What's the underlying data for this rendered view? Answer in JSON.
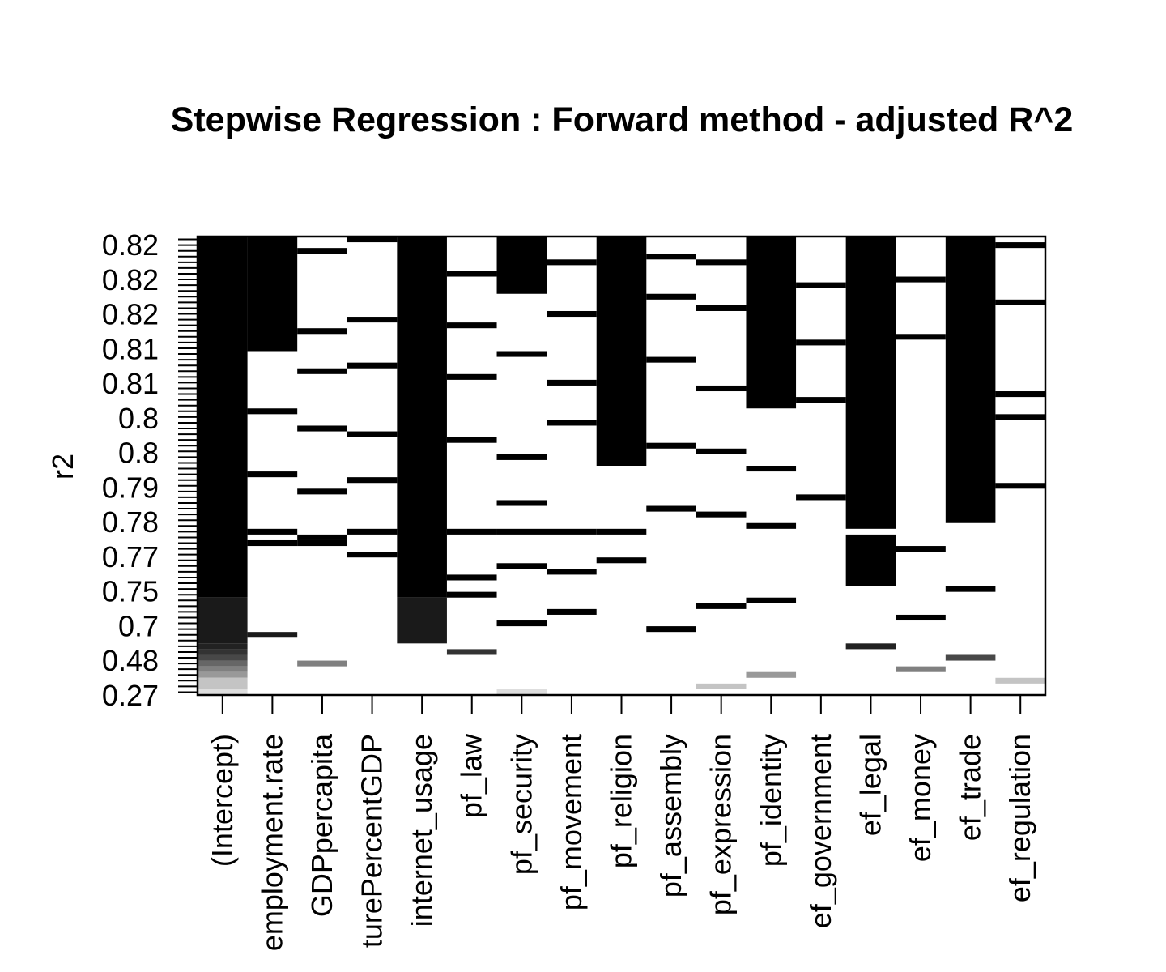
{
  "chart_data": {
    "type": "heatmap",
    "title": "Stepwise Regression : Forward method - adjusted R^2",
    "xlabel": "",
    "ylabel": "r2",
    "ytick_labels": [
      "0.82",
      "0.82",
      "0.82",
      "0.81",
      "0.81",
      "0.8",
      "0.8",
      "0.79",
      "0.78",
      "0.77",
      "0.75",
      "0.7",
      "0.48",
      "0.27"
    ],
    "columns": [
      "(Intercept)",
      "unemployment.rate",
      "GDPpercapita",
      "agriculturePercentGDP",
      "internet_usage",
      "pf_law",
      "pf_security",
      "pf_movement",
      "pf_religion",
      "pf_assembly",
      "pf_expression",
      "pf_identity",
      "ef_government",
      "ef_legal",
      "ef_money",
      "ef_trade",
      "ef_regulation"
    ],
    "column_labels_visible": [
      "(Intercept)",
      "employment.rate",
      "GDPpercapita",
      "turePercentGDP",
      "internet_usage",
      "pf_law",
      "pf_security",
      "pf_movement",
      "pf_religion",
      "pf_assembly",
      "pf_expression",
      "pf_identity",
      "ef_government",
      "ef_legal",
      "ef_money",
      "ef_trade",
      "ef_regulation"
    ],
    "n_models": 80,
    "note_fill": "black = variable included in model row; shade encodes adjusted R^2 level",
    "cells": [
      {
        "col": 0,
        "rows": [
          0,
          63
        ],
        "shade": "#000000"
      },
      {
        "col": 0,
        "rows": [
          63,
          71
        ],
        "shade": "#1a1a1a"
      },
      {
        "col": 0,
        "rows": [
          71,
          72
        ],
        "shade": "#222222"
      },
      {
        "col": 0,
        "rows": [
          72,
          73
        ],
        "shade": "#333333"
      },
      {
        "col": 0,
        "rows": [
          73,
          74
        ],
        "shade": "#484848"
      },
      {
        "col": 0,
        "rows": [
          74,
          75
        ],
        "shade": "#666666"
      },
      {
        "col": 0,
        "rows": [
          75,
          76
        ],
        "shade": "#808080"
      },
      {
        "col": 0,
        "rows": [
          76,
          77
        ],
        "shade": "#999999"
      },
      {
        "col": 0,
        "rows": [
          77,
          79
        ],
        "shade": "#c4c4c4"
      },
      {
        "col": 0,
        "rows": [
          79,
          80
        ],
        "shade": "#dedede"
      },
      {
        "col": 1,
        "rows": [
          0,
          20
        ],
        "shade": "#000000"
      },
      {
        "col": 1,
        "rows": [
          30,
          31
        ],
        "shade": "#000000"
      },
      {
        "col": 1,
        "rows": [
          41,
          42
        ],
        "shade": "#000000"
      },
      {
        "col": 1,
        "rows": [
          51,
          52
        ],
        "shade": "#000000"
      },
      {
        "col": 1,
        "rows": [
          53,
          54
        ],
        "shade": "#000000"
      },
      {
        "col": 1,
        "rows": [
          69,
          70
        ],
        "shade": "#1a1a1a"
      },
      {
        "col": 2,
        "rows": [
          2,
          3
        ],
        "shade": "#000000"
      },
      {
        "col": 2,
        "rows": [
          16,
          17
        ],
        "shade": "#000000"
      },
      {
        "col": 2,
        "rows": [
          23,
          24
        ],
        "shade": "#000000"
      },
      {
        "col": 2,
        "rows": [
          33,
          34
        ],
        "shade": "#000000"
      },
      {
        "col": 2,
        "rows": [
          44,
          45
        ],
        "shade": "#000000"
      },
      {
        "col": 2,
        "rows": [
          52,
          53
        ],
        "shade": "#000000"
      },
      {
        "col": 2,
        "rows": [
          53,
          54
        ],
        "shade": "#000000"
      },
      {
        "col": 2,
        "rows": [
          74,
          75
        ],
        "shade": "#808080"
      },
      {
        "col": 3,
        "rows": [
          0,
          1
        ],
        "shade": "#000000"
      },
      {
        "col": 3,
        "rows": [
          14,
          15
        ],
        "shade": "#000000"
      },
      {
        "col": 3,
        "rows": [
          22,
          23
        ],
        "shade": "#000000"
      },
      {
        "col": 3,
        "rows": [
          34,
          35
        ],
        "shade": "#000000"
      },
      {
        "col": 3,
        "rows": [
          42,
          43
        ],
        "shade": "#000000"
      },
      {
        "col": 3,
        "rows": [
          51,
          52
        ],
        "shade": "#000000"
      },
      {
        "col": 3,
        "rows": [
          55,
          56
        ],
        "shade": "#000000"
      },
      {
        "col": 4,
        "rows": [
          0,
          63
        ],
        "shade": "#000000"
      },
      {
        "col": 4,
        "rows": [
          63,
          71
        ],
        "shade": "#1a1a1a"
      },
      {
        "col": 5,
        "rows": [
          6,
          7
        ],
        "shade": "#000000"
      },
      {
        "col": 5,
        "rows": [
          15,
          16
        ],
        "shade": "#000000"
      },
      {
        "col": 5,
        "rows": [
          24,
          25
        ],
        "shade": "#000000"
      },
      {
        "col": 5,
        "rows": [
          35,
          36
        ],
        "shade": "#000000"
      },
      {
        "col": 5,
        "rows": [
          51,
          52
        ],
        "shade": "#000000"
      },
      {
        "col": 5,
        "rows": [
          59,
          60
        ],
        "shade": "#000000"
      },
      {
        "col": 5,
        "rows": [
          62,
          63
        ],
        "shade": "#000000"
      },
      {
        "col": 5,
        "rows": [
          72,
          73
        ],
        "shade": "#333333"
      },
      {
        "col": 6,
        "rows": [
          0,
          10
        ],
        "shade": "#000000"
      },
      {
        "col": 6,
        "rows": [
          20,
          21
        ],
        "shade": "#000000"
      },
      {
        "col": 6,
        "rows": [
          38,
          39
        ],
        "shade": "#000000"
      },
      {
        "col": 6,
        "rows": [
          46,
          47
        ],
        "shade": "#000000"
      },
      {
        "col": 6,
        "rows": [
          51,
          52
        ],
        "shade": "#000000"
      },
      {
        "col": 6,
        "rows": [
          57,
          58
        ],
        "shade": "#000000"
      },
      {
        "col": 6,
        "rows": [
          67,
          68
        ],
        "shade": "#000000"
      },
      {
        "col": 6,
        "rows": [
          79,
          80
        ],
        "shade": "#dedede"
      },
      {
        "col": 7,
        "rows": [
          4,
          5
        ],
        "shade": "#000000"
      },
      {
        "col": 7,
        "rows": [
          13,
          14
        ],
        "shade": "#000000"
      },
      {
        "col": 7,
        "rows": [
          25,
          26
        ],
        "shade": "#000000"
      },
      {
        "col": 7,
        "rows": [
          32,
          33
        ],
        "shade": "#000000"
      },
      {
        "col": 7,
        "rows": [
          51,
          52
        ],
        "shade": "#000000"
      },
      {
        "col": 7,
        "rows": [
          58,
          59
        ],
        "shade": "#000000"
      },
      {
        "col": 7,
        "rows": [
          65,
          66
        ],
        "shade": "#000000"
      },
      {
        "col": 8,
        "rows": [
          0,
          40
        ],
        "shade": "#000000"
      },
      {
        "col": 8,
        "rows": [
          51,
          52
        ],
        "shade": "#000000"
      },
      {
        "col": 8,
        "rows": [
          56,
          57
        ],
        "shade": "#000000"
      },
      {
        "col": 9,
        "rows": [
          3,
          4
        ],
        "shade": "#000000"
      },
      {
        "col": 9,
        "rows": [
          10,
          11
        ],
        "shade": "#000000"
      },
      {
        "col": 9,
        "rows": [
          21,
          22
        ],
        "shade": "#000000"
      },
      {
        "col": 9,
        "rows": [
          36,
          37
        ],
        "shade": "#000000"
      },
      {
        "col": 9,
        "rows": [
          47,
          48
        ],
        "shade": "#000000"
      },
      {
        "col": 9,
        "rows": [
          68,
          69
        ],
        "shade": "#000000"
      },
      {
        "col": 10,
        "rows": [
          4,
          5
        ],
        "shade": "#000000"
      },
      {
        "col": 10,
        "rows": [
          12,
          13
        ],
        "shade": "#000000"
      },
      {
        "col": 10,
        "rows": [
          26,
          27
        ],
        "shade": "#000000"
      },
      {
        "col": 10,
        "rows": [
          37,
          38
        ],
        "shade": "#000000"
      },
      {
        "col": 10,
        "rows": [
          48,
          49
        ],
        "shade": "#000000"
      },
      {
        "col": 10,
        "rows": [
          64,
          65
        ],
        "shade": "#000000"
      },
      {
        "col": 10,
        "rows": [
          78,
          79
        ],
        "shade": "#c4c4c4"
      },
      {
        "col": 11,
        "rows": [
          0,
          30
        ],
        "shade": "#000000"
      },
      {
        "col": 11,
        "rows": [
          40,
          41
        ],
        "shade": "#000000"
      },
      {
        "col": 11,
        "rows": [
          50,
          51
        ],
        "shade": "#000000"
      },
      {
        "col": 11,
        "rows": [
          63,
          64
        ],
        "shade": "#000000"
      },
      {
        "col": 11,
        "rows": [
          76,
          77
        ],
        "shade": "#999999"
      },
      {
        "col": 12,
        "rows": [
          8,
          9
        ],
        "shade": "#000000"
      },
      {
        "col": 12,
        "rows": [
          18,
          19
        ],
        "shade": "#000000"
      },
      {
        "col": 12,
        "rows": [
          28,
          29
        ],
        "shade": "#000000"
      },
      {
        "col": 12,
        "rows": [
          45,
          46
        ],
        "shade": "#000000"
      },
      {
        "col": 13,
        "rows": [
          0,
          51
        ],
        "shade": "#000000"
      },
      {
        "col": 13,
        "rows": [
          52,
          61
        ],
        "shade": "#000000"
      },
      {
        "col": 13,
        "rows": [
          71,
          72
        ],
        "shade": "#222222"
      },
      {
        "col": 14,
        "rows": [
          7,
          8
        ],
        "shade": "#000000"
      },
      {
        "col": 14,
        "rows": [
          17,
          18
        ],
        "shade": "#000000"
      },
      {
        "col": 14,
        "rows": [
          54,
          55
        ],
        "shade": "#000000"
      },
      {
        "col": 14,
        "rows": [
          66,
          67
        ],
        "shade": "#000000"
      },
      {
        "col": 14,
        "rows": [
          75,
          76
        ],
        "shade": "#808080"
      },
      {
        "col": 15,
        "rows": [
          0,
          50
        ],
        "shade": "#000000"
      },
      {
        "col": 15,
        "rows": [
          61,
          62
        ],
        "shade": "#000000"
      },
      {
        "col": 15,
        "rows": [
          73,
          74
        ],
        "shade": "#484848"
      },
      {
        "col": 16,
        "rows": [
          1,
          2
        ],
        "shade": "#000000"
      },
      {
        "col": 16,
        "rows": [
          11,
          12
        ],
        "shade": "#000000"
      },
      {
        "col": 16,
        "rows": [
          27,
          28
        ],
        "shade": "#000000"
      },
      {
        "col": 16,
        "rows": [
          31,
          32
        ],
        "shade": "#000000"
      },
      {
        "col": 16,
        "rows": [
          43,
          44
        ],
        "shade": "#000000"
      },
      {
        "col": 16,
        "rows": [
          77,
          78
        ],
        "shade": "#c4c4c4"
      }
    ],
    "grid": false,
    "legend": "none"
  }
}
